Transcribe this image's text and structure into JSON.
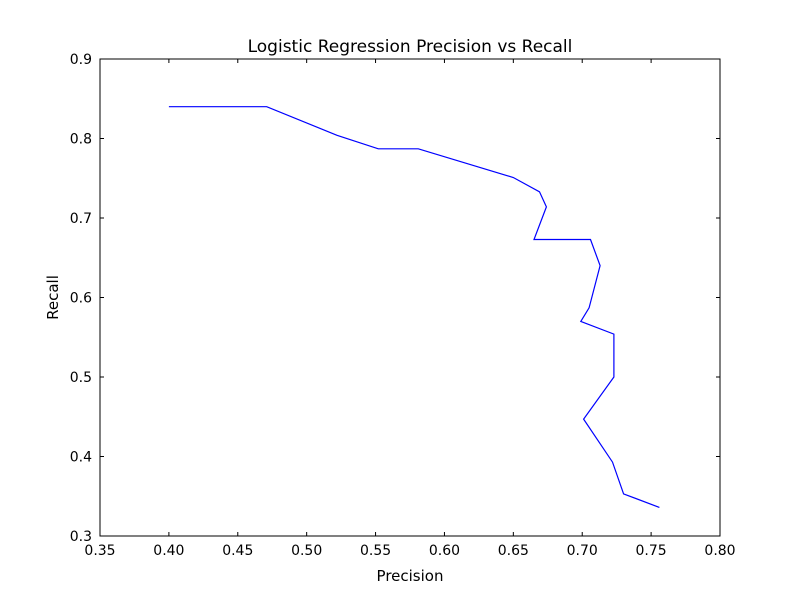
{
  "chart_data": {
    "type": "line",
    "title": "Logistic Regression Precision vs Recall",
    "xlabel": "Precision",
    "ylabel": "Recall",
    "xlim": [
      0.35,
      0.8
    ],
    "ylim": [
      0.3,
      0.9
    ],
    "xticks": [
      0.35,
      0.4,
      0.45,
      0.5,
      0.55,
      0.6,
      0.65,
      0.7,
      0.75,
      0.8
    ],
    "xtick_labels": [
      "0.35",
      "0.40",
      "0.45",
      "0.50",
      "0.55",
      "0.60",
      "0.65",
      "0.70",
      "0.75",
      "0.80"
    ],
    "yticks": [
      0.3,
      0.4,
      0.5,
      0.6,
      0.7,
      0.8,
      0.9
    ],
    "ytick_labels": [
      "0.3",
      "0.4",
      "0.5",
      "0.6",
      "0.7",
      "0.8",
      "0.9"
    ],
    "grid": false,
    "series": [
      {
        "color": "#0000ff",
        "x": [
          0.4,
          0.471,
          0.522,
          0.552,
          0.581,
          0.65,
          0.669,
          0.674,
          0.665,
          0.706,
          0.713,
          0.705,
          0.699,
          0.723,
          0.723,
          0.701,
          0.722,
          0.73,
          0.756
        ],
        "y": [
          0.84,
          0.84,
          0.804,
          0.787,
          0.787,
          0.751,
          0.733,
          0.714,
          0.673,
          0.673,
          0.64,
          0.587,
          0.57,
          0.554,
          0.5,
          0.447,
          0.393,
          0.353,
          0.336
        ]
      }
    ]
  }
}
